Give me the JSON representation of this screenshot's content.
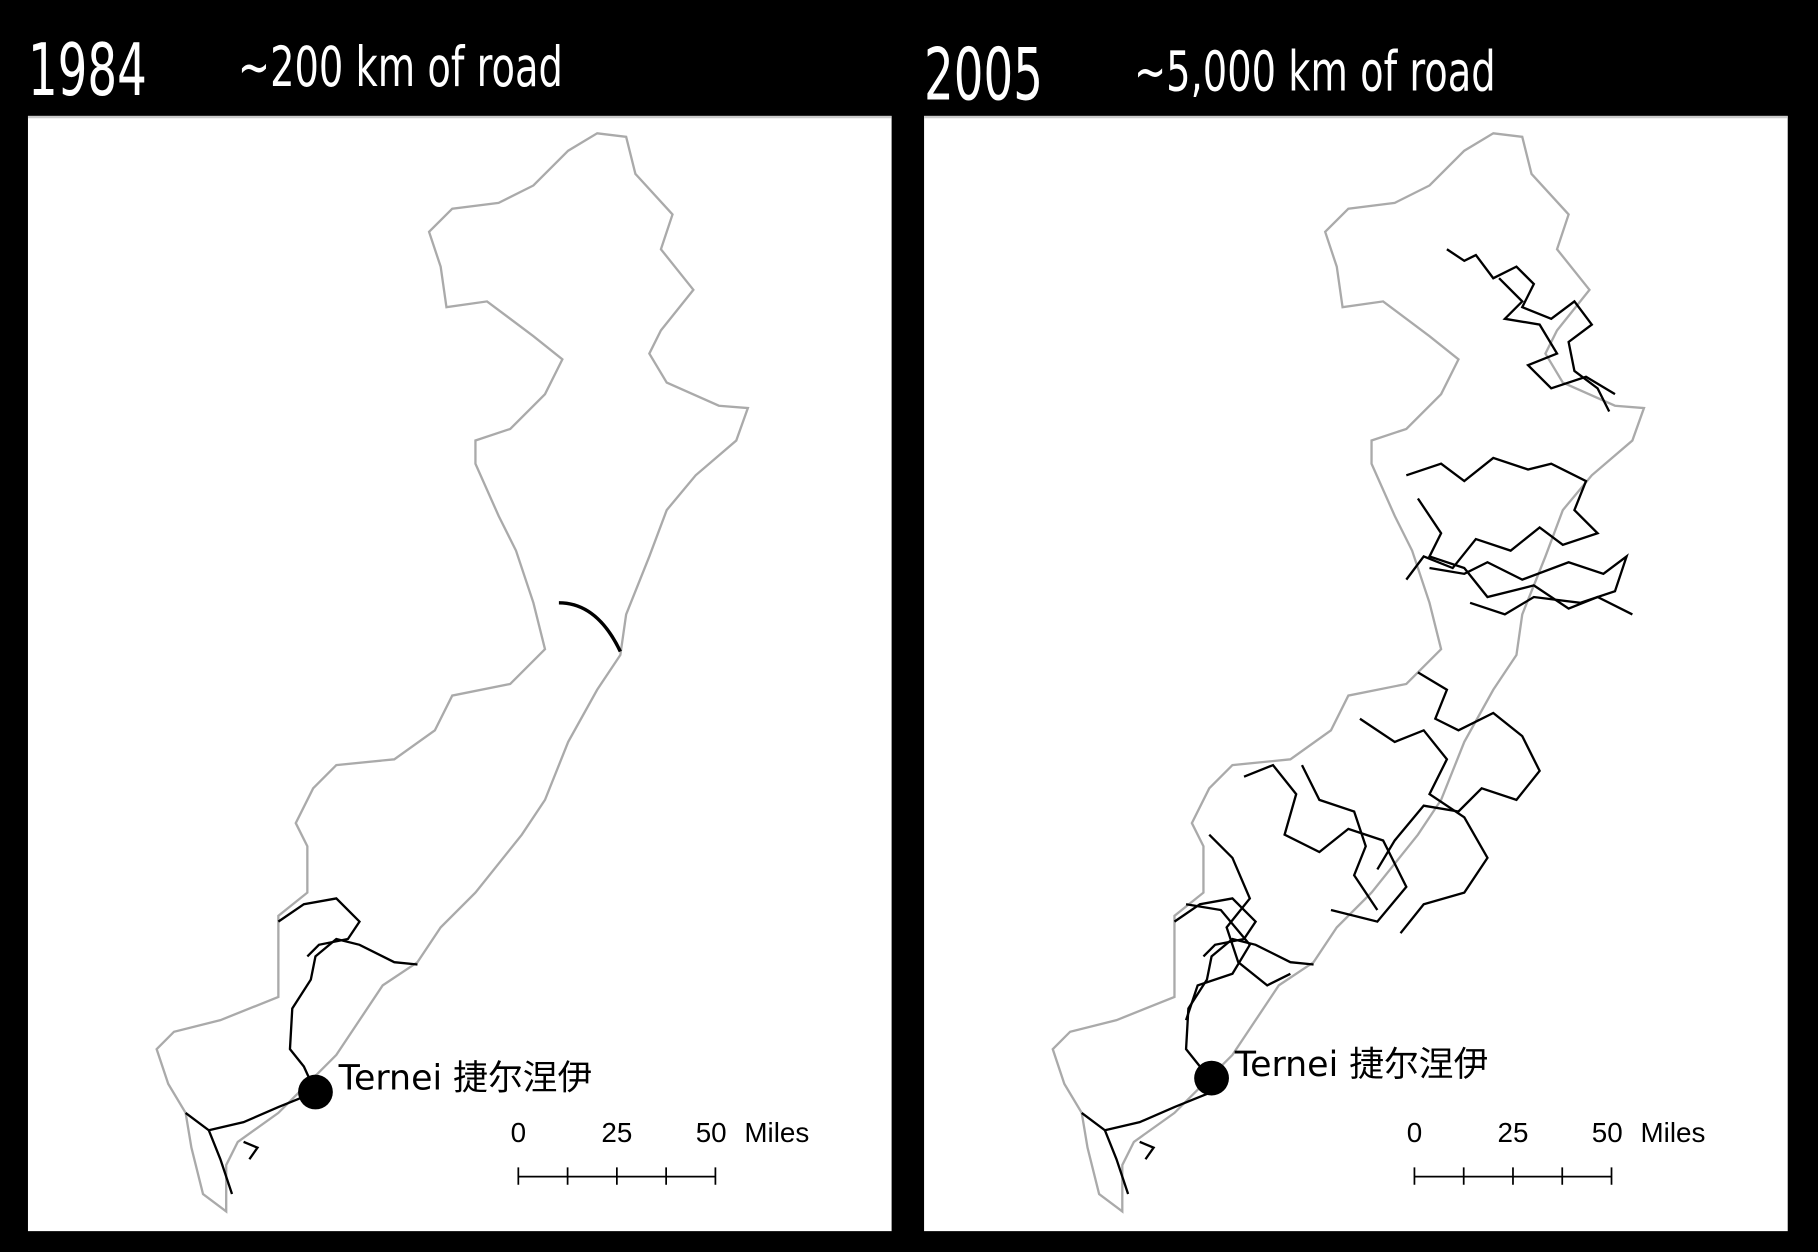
{
  "panels": [
    {
      "year": "1984",
      "subtitle": "~200 km of road",
      "place": "Ternei 捷尔涅伊",
      "scale_labels": [
        "0",
        "25",
        "50"
      ],
      "scale_unit": "Miles"
    },
    {
      "year": "2005",
      "subtitle": "~5,000 km of road",
      "place": "Ternei 捷尔涅伊",
      "scale_labels": [
        "0",
        "25",
        "50"
      ],
      "scale_unit": "Miles"
    }
  ]
}
